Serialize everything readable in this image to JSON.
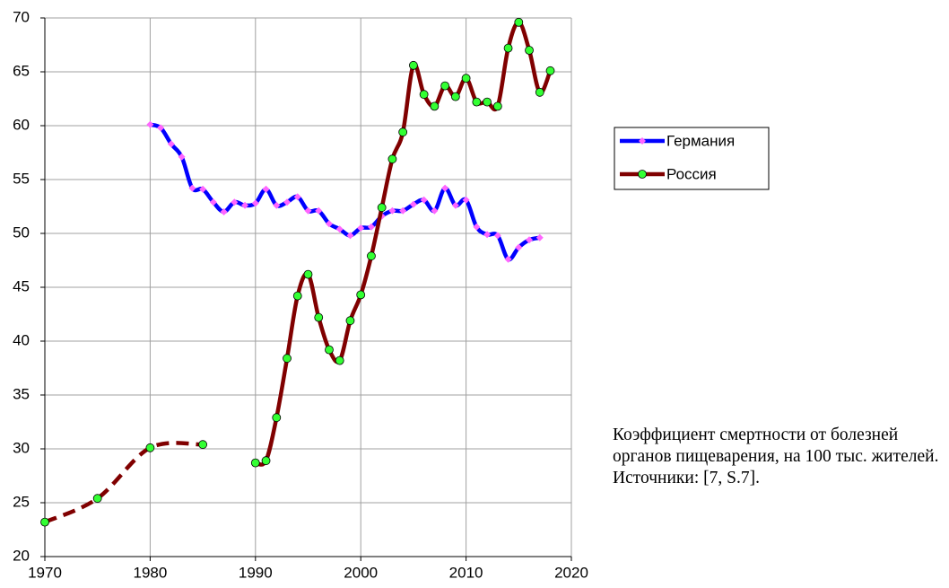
{
  "chart_data": {
    "type": "line",
    "note": "Коэффициент смертности от болезней органов пищеварения, на 100 тыс. жителей. Источники: [7, S.7].",
    "xlim": [
      1970,
      2020
    ],
    "xticks": [
      1970,
      1980,
      1990,
      2000,
      2010,
      2020
    ],
    "ylim": [
      20,
      70
    ],
    "yticks": [
      20,
      25,
      30,
      35,
      40,
      45,
      50,
      55,
      60,
      65,
      70
    ],
    "grid": true,
    "legend": "right",
    "series": [
      {
        "name": "Германия",
        "color": "#0000ff",
        "marker_color": "#ff66ff",
        "marker": "diamond",
        "x": [
          1980,
          1981,
          1982,
          1983,
          1984,
          1985,
          1986,
          1987,
          1988,
          1989,
          1990,
          1991,
          1992,
          1993,
          1994,
          1995,
          1996,
          1997,
          1998,
          1999,
          2000,
          2001,
          2002,
          2003,
          2004,
          2005,
          2006,
          2007,
          2008,
          2009,
          2010,
          2011,
          2012,
          2013,
          2014,
          2015,
          2016,
          2017
        ],
        "values": [
          60.1,
          59.8,
          58.3,
          57.1,
          54.2,
          54.1,
          52.9,
          52.0,
          52.9,
          52.6,
          52.8,
          54.1,
          52.6,
          52.9,
          53.4,
          52.1,
          52.1,
          50.9,
          50.4,
          49.8,
          50.5,
          50.6,
          51.6,
          52.1,
          52.1,
          52.7,
          53.1,
          52.1,
          54.2,
          52.6,
          53.1,
          50.6,
          49.9,
          49.8,
          47.6,
          48.7,
          49.4,
          49.6
        ]
      },
      {
        "name": "Россия",
        "color": "#800000",
        "marker_color": "#33ff33",
        "marker": "circle",
        "dashed_until": 1985,
        "x": [
          1970,
          1975,
          1980,
          1985,
          1990,
          1991,
          1992,
          1993,
          1994,
          1995,
          1996,
          1997,
          1998,
          1999,
          2000,
          2001,
          2002,
          2003,
          2004,
          2005,
          2006,
          2007,
          2008,
          2009,
          2010,
          2011,
          2012,
          2013,
          2014,
          2015,
          2016,
          2017,
          2018
        ],
        "values": [
          23.2,
          25.4,
          30.1,
          30.4,
          28.7,
          28.9,
          32.9,
          38.4,
          44.2,
          46.2,
          42.2,
          39.2,
          38.2,
          41.9,
          44.3,
          47.9,
          52.4,
          56.9,
          59.4,
          65.6,
          62.9,
          61.8,
          63.7,
          62.7,
          64.4,
          62.2,
          62.2,
          61.8,
          67.2,
          69.6,
          67.0,
          63.1,
          65.1
        ]
      }
    ]
  }
}
